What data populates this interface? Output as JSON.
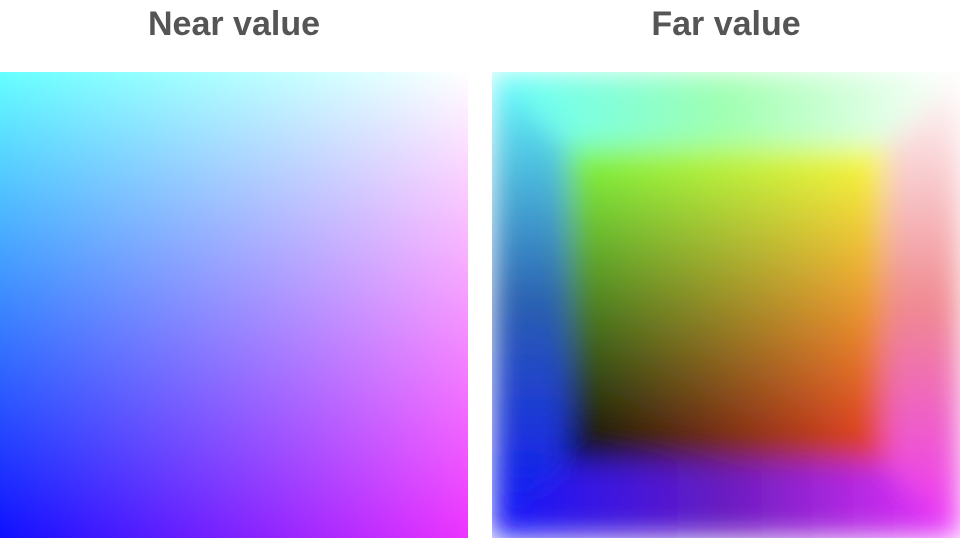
{
  "panels": {
    "near": {
      "title": "Near value",
      "corner_colors": {
        "top_left": "#66ffff",
        "top_right": "#ffffff",
        "bottom_left": "#1010ff",
        "bottom_right": "#ee33ff"
      }
    },
    "far": {
      "title": "Far value",
      "corner_colors": {
        "outer_top_left": "#66ffff",
        "outer_top_right": "#ffffff",
        "outer_bottom_left": "#1010ff",
        "outer_bottom_right": "#ee33ff",
        "inner_top_left": "#7fff40",
        "inner_top_right": "#ffff40",
        "inner_bottom_left": "#000000",
        "inner_bottom_right": "#ee3322"
      }
    }
  }
}
